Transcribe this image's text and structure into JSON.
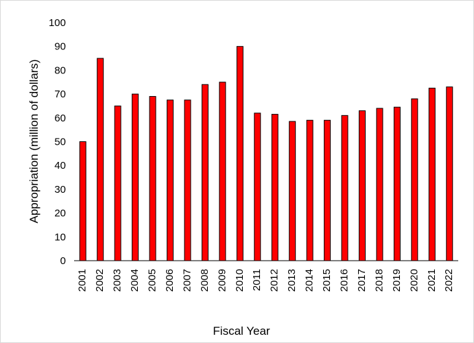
{
  "chart_data": {
    "type": "bar",
    "title": "",
    "xlabel": "Fiscal Year",
    "ylabel": "Appropriation (million of dollars)",
    "ylim": [
      0,
      100
    ],
    "yticks": [
      0,
      10,
      20,
      30,
      40,
      50,
      60,
      70,
      80,
      90,
      100
    ],
    "grid": false,
    "legend": "none",
    "categories": [
      "2001",
      "2002",
      "2003",
      "2004",
      "2005",
      "2006",
      "2007",
      "2008",
      "2009",
      "2010",
      "2011",
      "2012",
      "2013",
      "2014",
      "2015",
      "2016",
      "2017",
      "2018",
      "2019",
      "2020",
      "2021",
      "2022"
    ],
    "values": [
      50,
      85,
      65,
      70,
      69,
      67.5,
      67.5,
      74,
      75,
      90,
      62,
      61.5,
      58.5,
      59,
      59,
      61,
      63,
      64,
      64.5,
      68,
      72.5,
      73
    ],
    "colors": {
      "bar_fill": "#ff0000",
      "bar_stroke": "#000000",
      "axis": "#000000"
    }
  }
}
